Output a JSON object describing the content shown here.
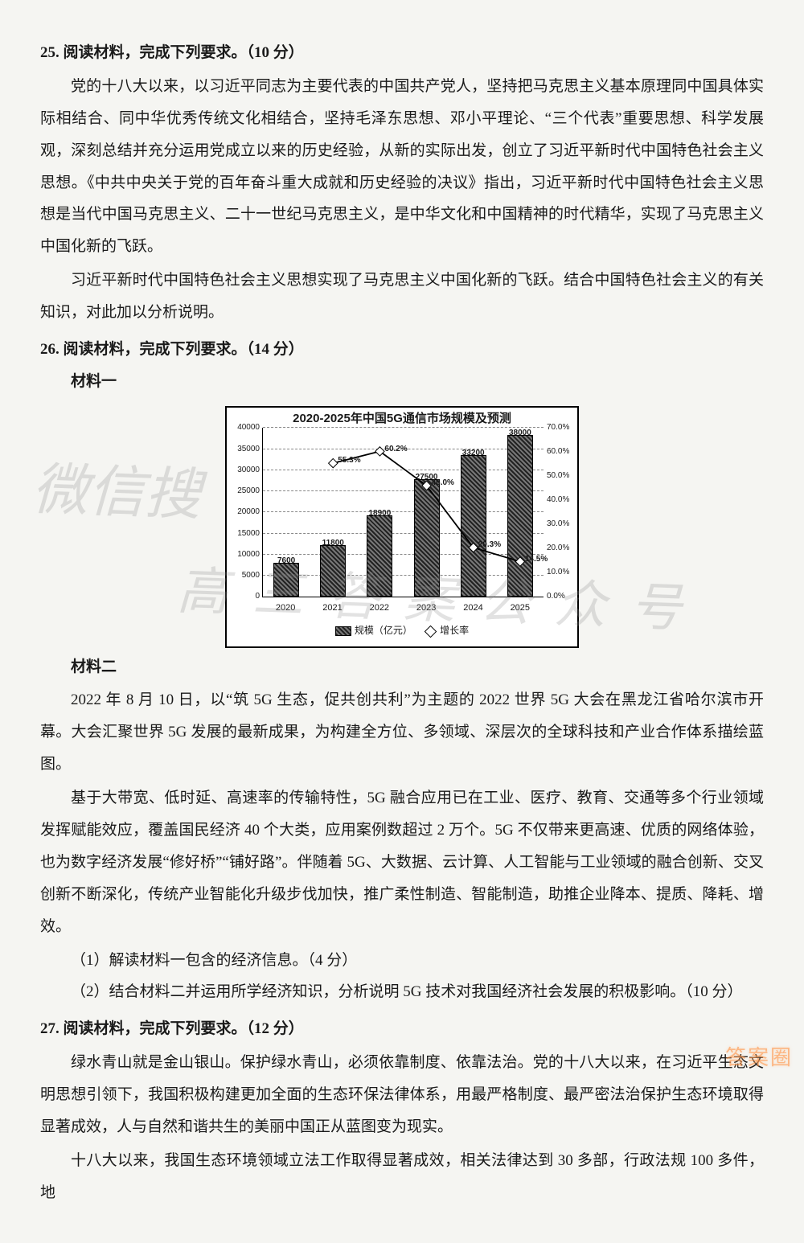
{
  "q25": {
    "header": "25. 阅读材料，完成下列要求。（10 分）",
    "p1": "党的十八大以来，以习近平同志为主要代表的中国共产党人，坚持把马克思主义基本原理同中国具体实际相结合、同中华优秀传统文化相结合，坚持毛泽东思想、邓小平理论、“三个代表”重要思想、科学发展观，深刻总结并充分运用党成立以来的历史经验，从新的实际出发，创立了习近平新时代中国特色社会主义思想。《中共中央关于党的百年奋斗重大成就和历史经验的决议》指出，习近平新时代中国特色社会主义思想是当代中国马克思主义、二十一世纪马克思主义，是中华文化和中国精神的时代精华，实现了马克思主义中国化新的飞跃。",
    "p2": "习近平新时代中国特色社会主义思想实现了马克思主义中国化新的飞跃。结合中国特色社会主义的有关知识，对此加以分析说明。"
  },
  "q26": {
    "header": "26. 阅读材料，完成下列要求。（14 分）",
    "m1_label": "材料一",
    "chart": {
      "type": "bar+line",
      "title": "2020-2025年中国5G通信市场规模及预测",
      "categories": [
        "2020",
        "2021",
        "2022",
        "2023",
        "2024",
        "2025"
      ],
      "bar_values": [
        7600,
        11800,
        18900,
        27500,
        33200,
        38000
      ],
      "bar_value_labels": [
        "7600",
        "11800",
        "18900",
        "27500",
        "33200",
        "38000"
      ],
      "growth_values": [
        null,
        55.3,
        60.2,
        46.0,
        20.3,
        14.5
      ],
      "growth_labels": [
        "",
        "55.3%",
        "60.2%",
        "46.0%",
        "20.3%",
        "14.5%"
      ],
      "y_left": {
        "min": 0,
        "max": 40000,
        "step": 5000,
        "ticks": [
          "0",
          "5000",
          "10000",
          "15000",
          "20000",
          "25000",
          "30000",
          "35000",
          "40000"
        ]
      },
      "y_right": {
        "min": 0,
        "max": 70,
        "step": 10,
        "ticks": [
          "0.0%",
          "10.0%",
          "20.0%",
          "30.0%",
          "40.0%",
          "50.0%",
          "60.0%",
          "70.0%"
        ]
      },
      "legend_bar": "规模（亿元）",
      "legend_line": "增长率",
      "bar_color": "#3a3a3a",
      "line_color": "#000000",
      "grid_color": "#888888",
      "background": "#ffffff",
      "title_fontsize": 15,
      "label_fontsize": 10
    },
    "m2_label": "材料二",
    "m2_p1": "2022 年 8 月 10 日，以“筑 5G 生态，促共创共利”为主题的 2022 世界 5G 大会在黑龙江省哈尔滨市开幕。大会汇聚世界 5G 发展的最新成果，为构建全方位、多领域、深层次的全球科技和产业合作体系描绘蓝图。",
    "m2_p2": "基于大带宽、低时延、高速率的传输特性，5G 融合应用已在工业、医疗、教育、交通等多个行业领域发挥赋能效应，覆盖国民经济 40 个大类，应用案例数超过 2 万个。5G 不仅带来更高速、优质的网络体验，也为数字经济发展“修好桥”“铺好路”。伴随着 5G、大数据、云计算、人工智能与工业领域的融合创新、交叉创新不断深化，传统产业智能化升级步伐加快，推广柔性制造、智能制造，助推企业降本、提质、降耗、增效。",
    "sub1": "（1）解读材料一包含的经济信息。（4 分）",
    "sub2": "（2）结合材料二并运用所学经济知识，分析说明 5G 技术对我国经济社会发展的积极影响。（10 分）"
  },
  "q27": {
    "header": "27. 阅读材料，完成下列要求。（12 分）",
    "p1": "绿水青山就是金山银山。保护绿水青山，必须依靠制度、依靠法治。党的十八大以来，在习近平生态文明思想引领下，我国积极构建更加全面的生态环保法律体系，用最严格制度、最严密法治保护生态环境取得显著成效，人与自然和谐共生的美丽中国正从蓝图变为现实。",
    "p2": "十八大以来，我国生态环境领域立法工作取得显著成效，相关法律达到 30 多部，行政法规 100 多件，地"
  },
  "watermarks": {
    "wm1": "微信搜",
    "wm2": "高三答案公众号",
    "footer": "答案圈"
  }
}
